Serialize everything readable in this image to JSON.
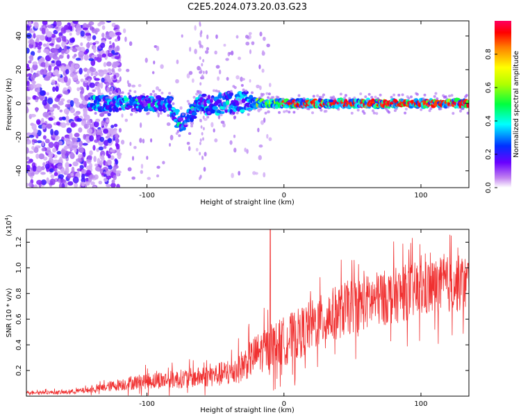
{
  "figure": {
    "title": "C2E5.2024.073.20.03.G23"
  },
  "chart_data": [
    {
      "type": "heatmap",
      "title": "C2E5.2024.073.20.03.G23",
      "xlabel": "Height of straight line (km)",
      "ylabel": "Frequency (Hz)",
      "xlim": [
        -188,
        135
      ],
      "ylim": [
        -50,
        49
      ],
      "x_ticks": [
        -100,
        0,
        100
      ],
      "x_tick_labels": [
        "-100",
        "0",
        "100"
      ],
      "y_ticks": [
        -40,
        -20,
        0,
        20,
        40
      ],
      "y_tick_labels": [
        "-40",
        "-20",
        "0",
        "20",
        "40"
      ],
      "grid": false,
      "colorbar": {
        "label": "Normalized spectral amplitude",
        "range": [
          0,
          1
        ],
        "ticks": [
          0.0,
          0.2,
          0.4,
          0.6,
          0.8
        ],
        "tick_labels": [
          "0.0",
          "0.2",
          "0.4",
          "0.6",
          "0.8"
        ],
        "colormap": "rainbow (purple-blue-cyan-green-yellow-orange-red)"
      },
      "description_values": {
        "noise_region_x": [
          -188,
          -130
        ],
        "signal_band_center_freq_hz": 0,
        "signal_band_start_x": -142,
        "excursion_near_x": -75,
        "excursion_min_freq_hz": -16,
        "strong_signal_from_x": -20
      },
      "colors": {
        "low": "#e8c8f8",
        "mid": "#00ffff",
        "high": "#ff0000"
      }
    },
    {
      "type": "line",
      "xlabel": "Height of straight line (km)",
      "ylabel": "SNR (10 * v/v)",
      "multiplier_label": "(x10",
      "multiplier_exp": "4",
      "multiplier_close": ")",
      "xlim": [
        -188,
        135
      ],
      "ylim": [
        0,
        1.3
      ],
      "x_ticks": [
        -100,
        0,
        100
      ],
      "x_tick_labels": [
        "-100",
        "0",
        "100"
      ],
      "y_ticks": [
        0.2,
        0.4,
        0.6,
        0.8,
        1.0,
        1.2
      ],
      "y_tick_labels": [
        "0.2",
        "0.4",
        "0.6",
        "0.8",
        "1.0",
        "1.2"
      ],
      "grid": false,
      "series": [
        {
          "color": "#f03030",
          "trend_x": [
            -188,
            -160,
            -140,
            -120,
            -100,
            -80,
            -60,
            -40,
            -30,
            -20,
            -10,
            0,
            10,
            20,
            30,
            40,
            50,
            60,
            70,
            80,
            90,
            100,
            110,
            120,
            135
          ],
          "trend_y": [
            0.03,
            0.03,
            0.05,
            0.09,
            0.12,
            0.13,
            0.15,
            0.18,
            0.24,
            0.33,
            0.38,
            0.43,
            0.48,
            0.55,
            0.6,
            0.66,
            0.7,
            0.73,
            0.76,
            0.78,
            0.81,
            0.83,
            0.85,
            0.87,
            0.88
          ],
          "noise_amplitude": [
            0.015,
            0.02,
            0.03,
            0.06,
            0.08,
            0.09,
            0.1,
            0.13,
            0.16,
            0.2,
            0.22,
            0.24,
            0.25,
            0.25,
            0.26,
            0.27,
            0.27,
            0.27,
            0.27,
            0.27,
            0.28,
            0.28,
            0.28,
            0.28,
            0.28
          ],
          "spike": {
            "x": -10,
            "y": 1.3
          }
        }
      ]
    }
  ]
}
